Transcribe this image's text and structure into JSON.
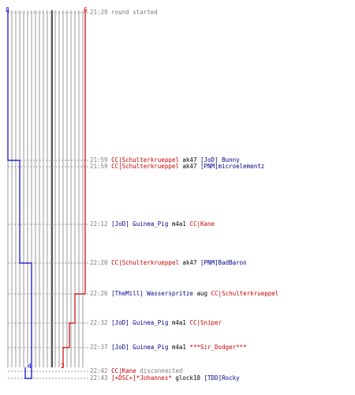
{
  "team_colors": {
    "blue": "#0000cc",
    "red": "#cc0000",
    "gray": "#999999",
    "dark_gray": "#555555"
  },
  "counters": {
    "blue_start": "8",
    "red_start": "6",
    "blue_end": "4",
    "red_end": "2"
  },
  "events": [
    {
      "time": "21:29",
      "parts": [
        {
          "text": "round started",
          "team": "info"
        }
      ]
    },
    {
      "time": "21:59",
      "parts": [
        {
          "text": "CC|Schulterkrueppel",
          "team": "red"
        },
        {
          "text": "ak47",
          "team": "weapon"
        },
        {
          "text": "[JoD] Bunny",
          "team": "blue"
        }
      ]
    },
    {
      "time": "21:59",
      "parts": [
        {
          "text": "CC|Schulterkrueppel",
          "team": "red"
        },
        {
          "text": "ak47",
          "team": "weapon"
        },
        {
          "text": "[PNM]microelementz",
          "team": "blue"
        }
      ]
    },
    {
      "time": "22:12",
      "parts": [
        {
          "text": "[JoD] Guinea_Pig",
          "team": "blue"
        },
        {
          "text": "m4a1",
          "team": "weapon"
        },
        {
          "text": "CC|Kane",
          "team": "red"
        }
      ]
    },
    {
      "time": "22:20",
      "parts": [
        {
          "text": "CC|Schulterkrueppel",
          "team": "red"
        },
        {
          "text": "ak47",
          "team": "weapon"
        },
        {
          "text": "[PNM]BadBaron",
          "team": "blue"
        }
      ]
    },
    {
      "time": "22:26",
      "parts": [
        {
          "text": "[TheMill] Wasserspritze",
          "team": "blue"
        },
        {
          "text": "aug",
          "team": "weapon"
        },
        {
          "text": "CC|Schulterkrueppel",
          "team": "red"
        }
      ]
    },
    {
      "time": "22:32",
      "parts": [
        {
          "text": "[JoD] Guinea_Pig",
          "team": "blue"
        },
        {
          "text": "m4a1",
          "team": "weapon"
        },
        {
          "text": "CC|Sniper",
          "team": "red"
        }
      ]
    },
    {
      "time": "22:37",
      "parts": [
        {
          "text": "[JoD] Guinea_Pig",
          "team": "blue"
        },
        {
          "text": "m4a1",
          "team": "weapon"
        },
        {
          "text": "***Sir_Dodger***",
          "team": "red"
        }
      ]
    },
    {
      "time": "22:42",
      "parts": [
        {
          "text": "CC|Kane",
          "team": "red"
        },
        {
          "text": "disconnected",
          "team": "info"
        }
      ]
    },
    {
      "time": "22:43",
      "parts": [
        {
          "text": "[+DSC+]*Johannes*",
          "team": "red"
        },
        {
          "text": "glock18",
          "team": "weapon"
        },
        {
          "text": "[TDD]Rocky",
          "team": "blue"
        }
      ]
    }
  ]
}
